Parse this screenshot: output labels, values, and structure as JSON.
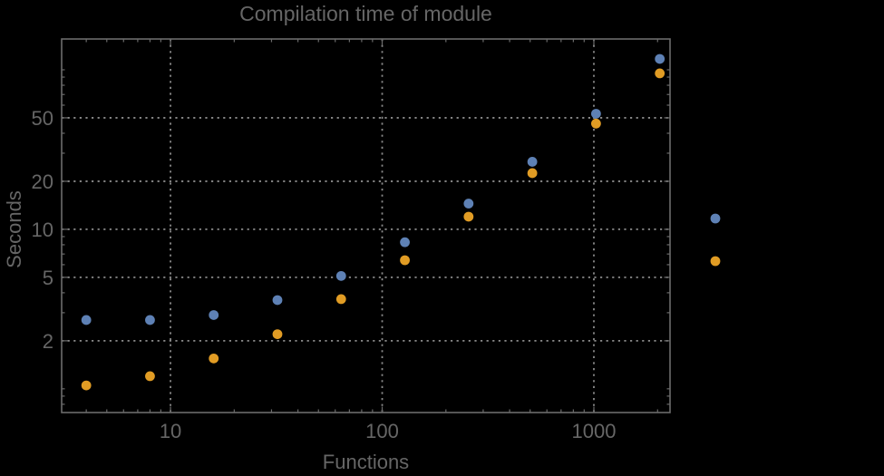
{
  "chart_data": {
    "type": "scatter",
    "title": "Compilation time of module",
    "xlabel": "Functions",
    "ylabel": "Seconds",
    "xscale": "log",
    "yscale": "log",
    "xlim": [
      3.06,
      2290
    ],
    "ylim": [
      0.71,
      156
    ],
    "grid": "dotted",
    "x": [
      4,
      8,
      16,
      32,
      64,
      128,
      256,
      512,
      1024,
      2048
    ],
    "series": [
      {
        "name": "blue",
        "color": "#5e81b5",
        "values": [
          2.7,
          2.7,
          2.9,
          3.6,
          5.1,
          8.3,
          14.5,
          26.5,
          53,
          117
        ]
      },
      {
        "name": "orange",
        "color": "#e19c24",
        "values": [
          1.05,
          1.2,
          1.55,
          2.2,
          3.65,
          6.4,
          12,
          22.5,
          46,
          95
        ]
      }
    ],
    "x_ticks": [
      10,
      100,
      1000
    ],
    "x_minor_ticks": [
      4,
      5,
      6,
      7,
      8,
      9,
      20,
      30,
      40,
      50,
      60,
      70,
      80,
      90,
      200,
      300,
      400,
      500,
      600,
      700,
      800,
      900,
      2000
    ],
    "y_ticks": [
      2,
      5,
      10,
      20,
      50
    ],
    "y_minor_ticks": [
      0.8,
      0.9,
      1,
      3,
      4,
      6,
      7,
      8,
      9,
      30,
      40,
      60,
      70,
      80,
      90,
      100
    ],
    "legend": {
      "position": "outside-right",
      "labels_visible": false
    }
  },
  "colors": {
    "background": "#000000",
    "frame": "#6b6b6b",
    "grid": "#8a8a8a",
    "text": "#666666"
  }
}
